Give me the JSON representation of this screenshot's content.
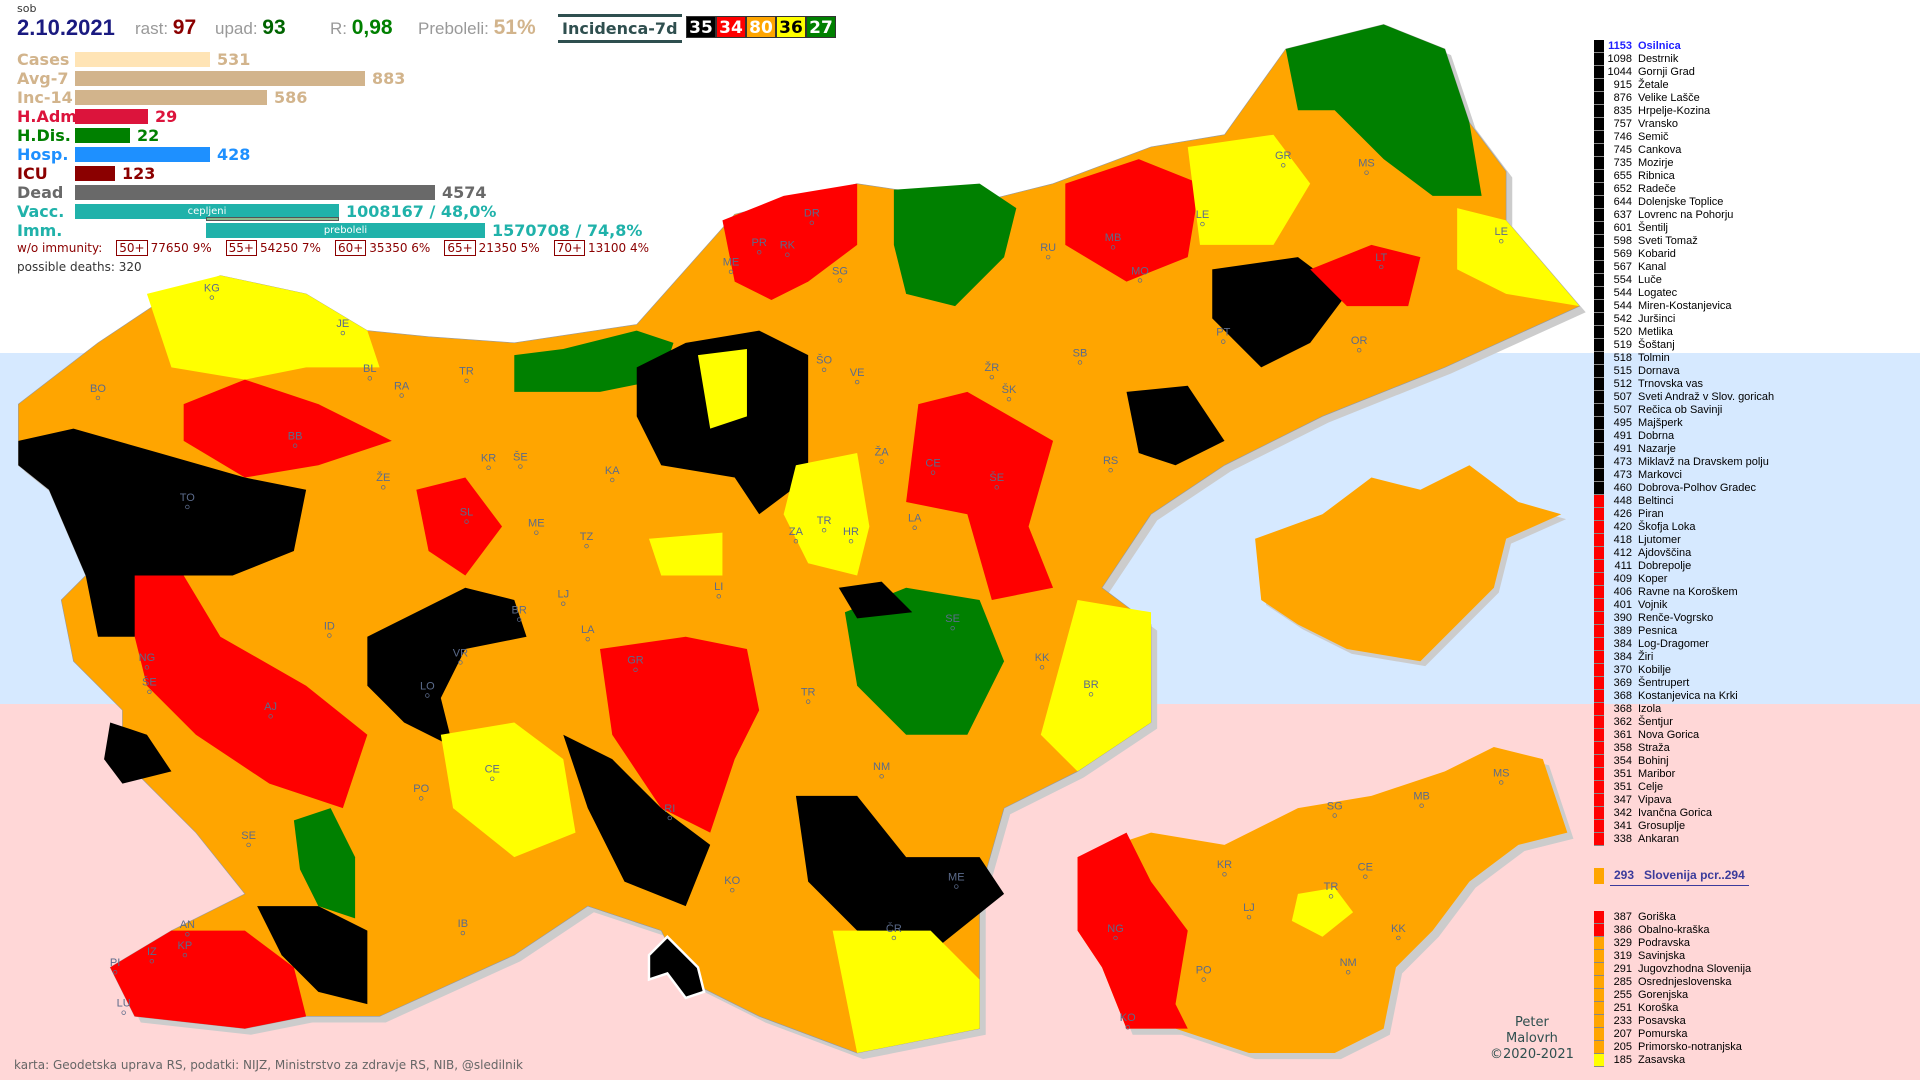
{
  "header": {
    "day": "sob",
    "date": "2.10.2021",
    "rast_label": "rast:",
    "rast": "97",
    "upad_label": "upad:",
    "upad": "93",
    "r_label": "R:",
    "r": "0,98",
    "preboleli_label": "Preboleli:",
    "preboleli": "51%",
    "incidence_label": "Incidenca-7d"
  },
  "legend": [
    {
      "count": "35",
      "color": "#000000"
    },
    {
      "count": "34",
      "color": "#ff0000"
    },
    {
      "count": "80",
      "color": "#ffa500"
    },
    {
      "count": "36",
      "color": "#ffff00"
    },
    {
      "count": "27",
      "color": "#008000"
    }
  ],
  "stats": [
    {
      "label": "Cases",
      "value": "531",
      "color": "#ffe4b5",
      "text": "#d2b48c"
    },
    {
      "label": "Avg-7",
      "value": "883",
      "color": "#d2b48c",
      "text": "#d2b48c"
    },
    {
      "label": "Inc-14",
      "value": "586",
      "color": "#d2b48c",
      "text": "#d2b48c"
    },
    {
      "label": "H.Adm",
      "value": "29",
      "color": "#dc143c",
      "text": "#dc143c"
    },
    {
      "label": "H.Dis.",
      "value": "22",
      "color": "#008000",
      "text": "#008000"
    },
    {
      "label": "Hosp.",
      "value": "428",
      "color": "#1e90ff",
      "text": "#1e90ff"
    },
    {
      "label": "ICU",
      "value": "123",
      "color": "#8b0000",
      "text": "#8b0000"
    },
    {
      "label": "Dead",
      "value": "4574",
      "color": "#696969",
      "text": "#696969"
    },
    {
      "label": "Vacc.",
      "value": "1008167 / 48,0%",
      "bar_text": "cepljeni",
      "color": "#20b2aa",
      "text": "#20b2aa"
    },
    {
      "label": "Imm.",
      "value": "1570708 / 74,8%",
      "bar_text": "preboleli",
      "color": "#20b2aa",
      "text": "#20b2aa"
    }
  ],
  "without_immunity": {
    "label": "w/o immunity:",
    "groups": [
      {
        "age": "50+",
        "value": "77650 9%"
      },
      {
        "age": "55+",
        "value": "54250 7%"
      },
      {
        "age": "60+",
        "value": "35350 6%"
      },
      {
        "age": "65+",
        "value": "21350 5%"
      },
      {
        "age": "70+",
        "value": "13100 4%"
      }
    ]
  },
  "possible_deaths": "possible deaths: 320",
  "municipalities": [
    [
      "1153",
      "Osilnica",
      "k"
    ],
    [
      "1098",
      "Destrnik",
      "k"
    ],
    [
      "1044",
      "Gornji Grad",
      "k"
    ],
    [
      "915",
      "Žetale",
      "k"
    ],
    [
      "876",
      "Velike Lašče",
      "k"
    ],
    [
      "835",
      "Hrpelje-Kozina",
      "k"
    ],
    [
      "757",
      "Vransko",
      "k"
    ],
    [
      "746",
      "Semič",
      "k"
    ],
    [
      "745",
      "Cankova",
      "k"
    ],
    [
      "735",
      "Mozirje",
      "k"
    ],
    [
      "655",
      "Ribnica",
      "k"
    ],
    [
      "652",
      "Radeče",
      "k"
    ],
    [
      "644",
      "Dolenjske Toplice",
      "k"
    ],
    [
      "637",
      "Lovrenc na Pohorju",
      "k"
    ],
    [
      "601",
      "Šentilj",
      "k"
    ],
    [
      "598",
      "Sveti Tomaž",
      "k"
    ],
    [
      "569",
      "Kobarid",
      "k"
    ],
    [
      "567",
      "Kanal",
      "k"
    ],
    [
      "554",
      "Luče",
      "k"
    ],
    [
      "544",
      "Logatec",
      "k"
    ],
    [
      "544",
      "Miren-Kostanjevica",
      "k"
    ],
    [
      "542",
      "Juršinci",
      "k"
    ],
    [
      "520",
      "Metlika",
      "k"
    ],
    [
      "519",
      "Šoštanj",
      "k"
    ],
    [
      "518",
      "Tolmin",
      "k"
    ],
    [
      "515",
      "Dornava",
      "k"
    ],
    [
      "512",
      "Trnovska vas",
      "k"
    ],
    [
      "507",
      "Sveti Andraž v Slov. goricah",
      "k"
    ],
    [
      "507",
      "Rečica ob Savinji",
      "k"
    ],
    [
      "495",
      "Majšperk",
      "k"
    ],
    [
      "491",
      "Dobrna",
      "k"
    ],
    [
      "491",
      "Nazarje",
      "k"
    ],
    [
      "473",
      "Miklavž na Dravskem polju",
      "k"
    ],
    [
      "473",
      "Markovci",
      "k"
    ],
    [
      "460",
      "Dobrova-Polhov Gradec",
      "k"
    ],
    [
      "448",
      "Beltinci",
      "r"
    ],
    [
      "426",
      "Piran",
      "r"
    ],
    [
      "420",
      "Škofja Loka",
      "r"
    ],
    [
      "418",
      "Ljutomer",
      "r"
    ],
    [
      "412",
      "Ajdovščina",
      "r"
    ],
    [
      "411",
      "Dobrepolje",
      "r"
    ],
    [
      "409",
      "Koper",
      "r"
    ],
    [
      "406",
      "Ravne na Koroškem",
      "r"
    ],
    [
      "401",
      "Vojnik",
      "r"
    ],
    [
      "390",
      "Renče-Vogrsko",
      "r"
    ],
    [
      "389",
      "Pesnica",
      "r"
    ],
    [
      "384",
      "Log-Dragomer",
      "r"
    ],
    [
      "384",
      "Žiri",
      "r"
    ],
    [
      "370",
      "Kobilje",
      "r"
    ],
    [
      "369",
      "Šentrupert",
      "r"
    ],
    [
      "368",
      "Kostanjevica na Krki",
      "r"
    ],
    [
      "368",
      "Izola",
      "r"
    ],
    [
      "362",
      "Šentjur",
      "r"
    ],
    [
      "361",
      "Nova Gorica",
      "r"
    ],
    [
      "358",
      "Straža",
      "r"
    ],
    [
      "354",
      "Bohinj",
      "r"
    ],
    [
      "351",
      "Maribor",
      "r"
    ],
    [
      "351",
      "Celje",
      "r"
    ],
    [
      "347",
      "Vipava",
      "r"
    ],
    [
      "342",
      "Ivančna Gorica",
      "r"
    ],
    [
      "341",
      "Grosuplje",
      "r"
    ],
    [
      "338",
      "Ankaran",
      "r"
    ]
  ],
  "slovenia": {
    "value": "293",
    "label": "Slovenija  pcr..294",
    "color": "#ffa500"
  },
  "regions": [
    [
      "387",
      "Goriška",
      "r"
    ],
    [
      "386",
      "Obalno-kraška",
      "r"
    ],
    [
      "329",
      "Podravska",
      "o"
    ],
    [
      "319",
      "Savinjska",
      "o"
    ],
    [
      "291",
      "Jugovzhodna Slovenija",
      "o"
    ],
    [
      "285",
      "Osrednjeslovenska",
      "o"
    ],
    [
      "255",
      "Gorenjska",
      "o"
    ],
    [
      "251",
      "Koroška",
      "o"
    ],
    [
      "233",
      "Posavska",
      "o"
    ],
    [
      "207",
      "Pomurska",
      "o"
    ],
    [
      "205",
      "Primorsko-notranjska",
      "o"
    ],
    [
      "185",
      "Zasavska",
      "y"
    ]
  ],
  "map_labels": [
    "KG",
    "JE",
    "BO",
    "BL",
    "RA",
    "TR",
    "BB",
    "TO",
    "ŽE",
    "KR",
    "ŠE",
    "KA",
    "SL",
    "ME",
    "TZ",
    "LJ",
    "ŠO",
    "VE",
    "ŽR",
    "ŠK",
    "SB",
    "ŽA",
    "CE",
    "ŠE",
    "RS",
    "LA",
    "ZA",
    "TR",
    "HR",
    "LI",
    "SE",
    "KK",
    "BR",
    "TR",
    "GR",
    "LA",
    "VR",
    "ID",
    "LO",
    "NG",
    "ŠE",
    "AJ",
    "PO",
    "CE",
    "RI",
    "NM",
    "KO",
    "ME",
    "ČR",
    "SE",
    "IB",
    "AN",
    "KP",
    "IZ",
    "PI",
    "LU",
    "DR",
    "PR",
    "RK",
    "ME",
    "SG",
    "RU",
    "MB",
    "MO",
    "LE",
    "GR",
    "MS",
    "LE",
    "LT",
    "PT",
    "OR",
    "BR"
  ],
  "region_map_labels": [
    "MS",
    "SG",
    "MB",
    "KR",
    "CE",
    "TR",
    "LJ",
    "KK",
    "NG",
    "PO",
    "NM",
    "KO"
  ],
  "footer": {
    "credits": "karta: Geodetska uprava RS,  podatki: NIJZ, Ministrstvo za zdravje RS, NIB, @sledilnik",
    "author": "Peter",
    "author2": "Malovrh",
    "copyright": "©2020-2021"
  },
  "colors": {
    "k": "#000000",
    "r": "#ff0000",
    "o": "#ffa500",
    "y": "#ffff00",
    "g": "#008000",
    "band_blue": "#d6e9ff",
    "band_pink": "#ffd7d7"
  }
}
